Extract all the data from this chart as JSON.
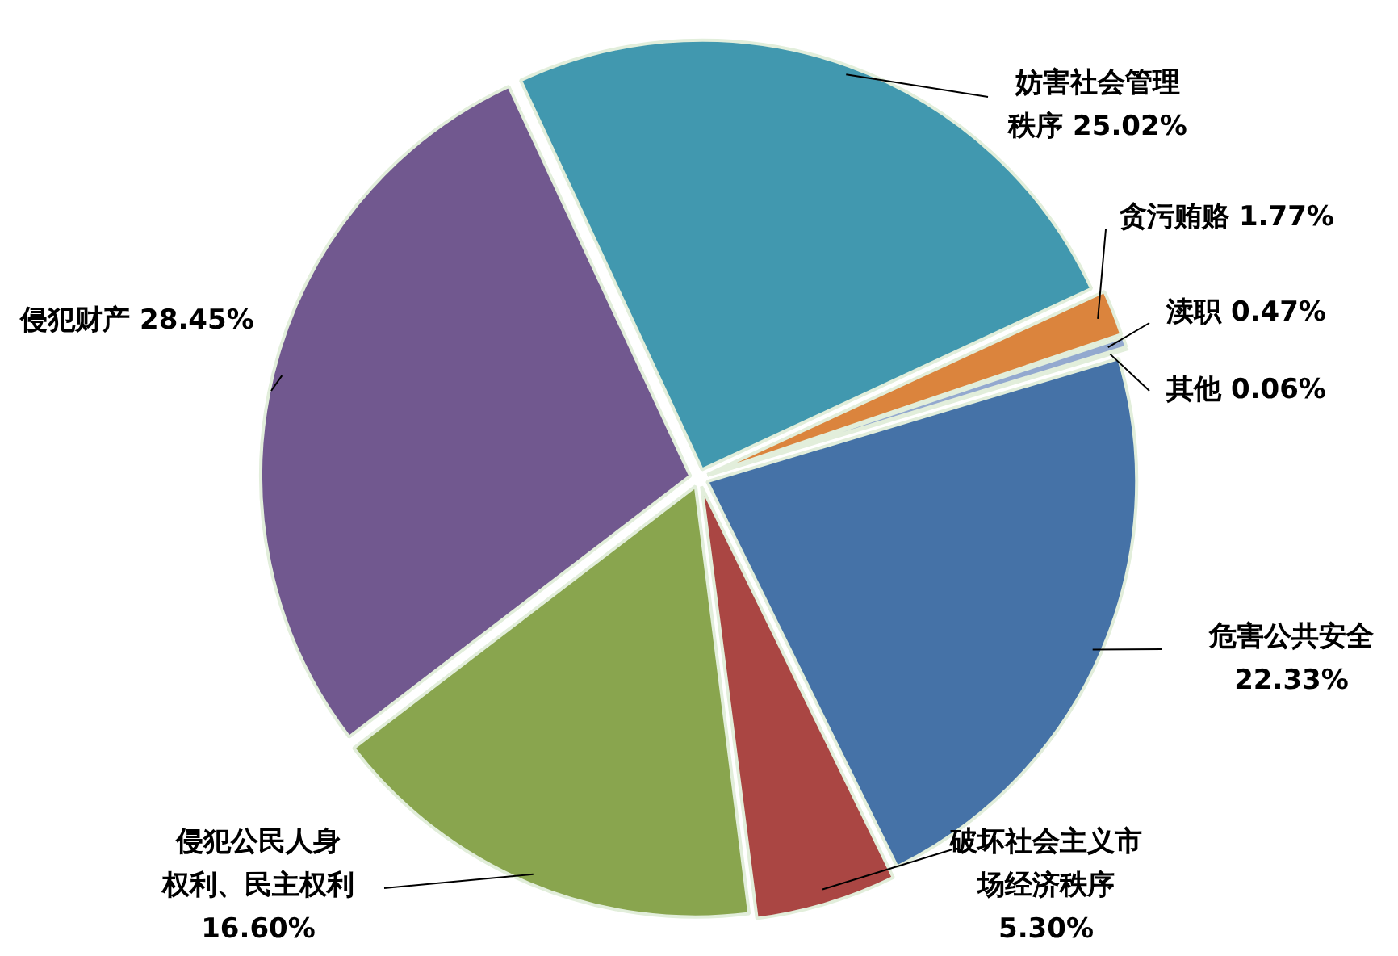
{
  "chart_data": {
    "type": "pie",
    "categories": [
      "妨害社会管理秩序",
      "贪污贿赂",
      "渎职",
      "其他",
      "危害公共安全",
      "破坏社会主义市场经济秩序",
      "侵犯公民人身权利、民主权利",
      "侵犯财产"
    ],
    "values": [
      25.02,
      1.77,
      0.47,
      0.06,
      22.33,
      5.3,
      16.6,
      28.45
    ],
    "value_labels": [
      "25.02%",
      "1.77%",
      "0.47%",
      "0.06%",
      "22.33%",
      "5.30%",
      "16.60%",
      "28.45%"
    ],
    "colors": [
      "#4198af",
      "#db843d",
      "#93a9cf",
      "#b9cd96",
      "#4572a7",
      "#aa4643",
      "#89a54e",
      "#71588f"
    ],
    "legend": false
  }
}
